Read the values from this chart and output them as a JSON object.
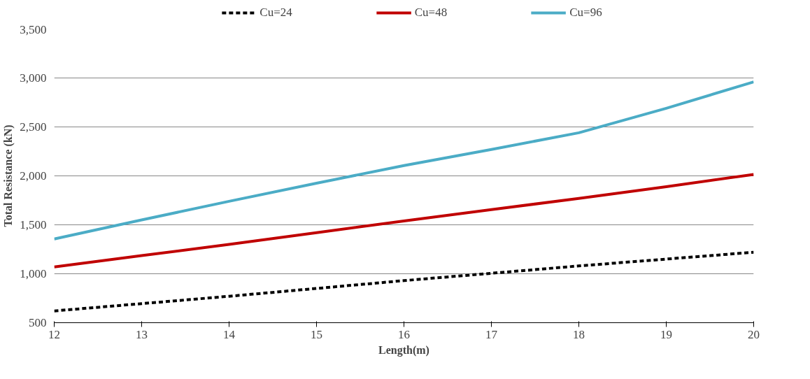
{
  "chart_data": {
    "type": "line",
    "xlabel": "Length(m)",
    "ylabel": "Total Resistance (kN)",
    "xlim": [
      12,
      20
    ],
    "xticks": [
      12,
      13,
      14,
      15,
      16,
      17,
      18,
      19,
      20
    ],
    "ylim": [
      500,
      3500
    ],
    "yticks": [
      {
        "value": 500,
        "label": "500"
      },
      {
        "value": 1000,
        "label": "1,000"
      },
      {
        "value": 1500,
        "label": "1,500"
      },
      {
        "value": 2000,
        "label": "2,000"
      },
      {
        "value": 2500,
        "label": "2,500"
      },
      {
        "value": 3000,
        "label": "3,000"
      },
      {
        "value": 3500,
        "label": "3,500"
      }
    ],
    "x": [
      12,
      13,
      14,
      15,
      16,
      17,
      18,
      19,
      20
    ],
    "grid": "y",
    "legend": "top",
    "marker": "none",
    "series": [
      {
        "name": "Cu=24",
        "color": "#000000",
        "line_style": "dashed",
        "values": [
          620,
          695,
          770,
          850,
          930,
          1005,
          1080,
          1150,
          1220
        ]
      },
      {
        "name": "Cu=48",
        "color": "#c00000",
        "line_style": "solid",
        "values": [
          1070,
          1185,
          1300,
          1420,
          1540,
          1655,
          1770,
          1890,
          2015
        ]
      },
      {
        "name": "Cu=96",
        "color": "#4bacc6",
        "line_style": "solid",
        "values": [
          1355,
          1550,
          1740,
          1925,
          2105,
          2270,
          2440,
          2690,
          2960
        ]
      }
    ]
  }
}
